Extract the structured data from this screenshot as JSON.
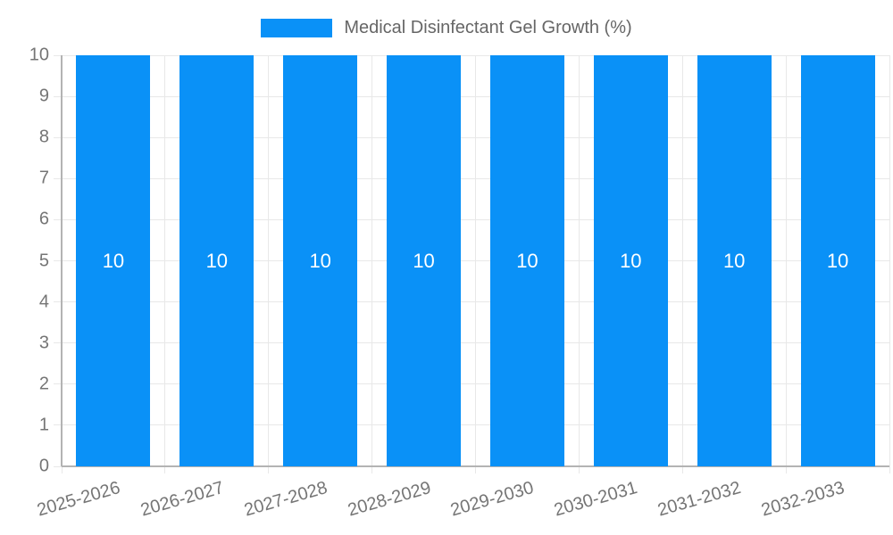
{
  "chart_data": {
    "type": "bar",
    "title": "Medical Disinfectant Gel Growth (%)",
    "categories": [
      "2025-2026",
      "2026-2027",
      "2027-2028",
      "2028-2029",
      "2029-2030",
      "2030-2031",
      "2031-2032",
      "2032-2033"
    ],
    "values": [
      10,
      10,
      10,
      10,
      10,
      10,
      10,
      10
    ],
    "bar_value_labels": [
      "10",
      "10",
      "10",
      "10",
      "10",
      "10",
      "10",
      "10"
    ],
    "xlabel": "",
    "ylabel": "",
    "ylim": [
      0,
      10
    ],
    "yticks": [
      0,
      1,
      2,
      3,
      4,
      5,
      6,
      7,
      8,
      9,
      10
    ],
    "ytick_step": 1,
    "grid": "on",
    "legend_position": "top-center",
    "colors": {
      "bar": "#0a91f7",
      "title_text": "#666666",
      "axis_label_text": "#757575",
      "value_label_text": "#ffffff",
      "gridline": "#e8e8e8",
      "axis_line": "#b3b3b3"
    }
  }
}
